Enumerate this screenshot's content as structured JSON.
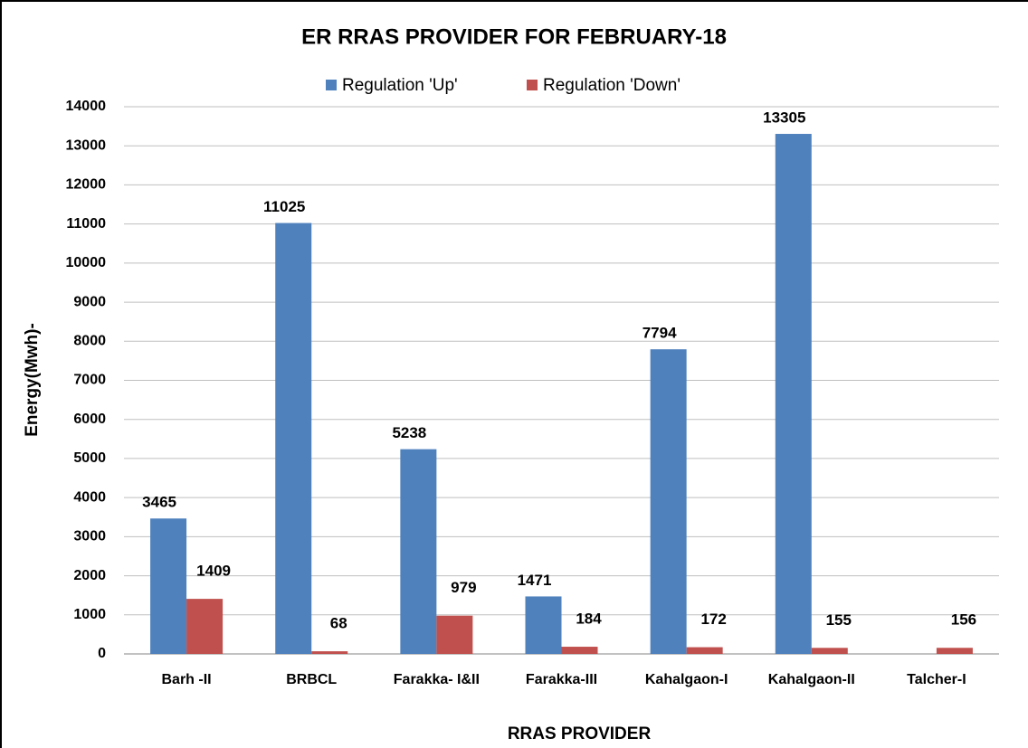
{
  "chart_data": {
    "type": "bar",
    "title": "ER RRAS PROVIDER FOR FEBRUARY-18",
    "x_label": "RRAS PROVIDER",
    "y_label": "Energy(Mwh)-",
    "categories": [
      "Barh -II",
      "BRBCL",
      "Farakka- I&II",
      "Farakka-III",
      "Kahalgaon-I",
      "Kahalgaon-II",
      "Talcher-I"
    ],
    "series": [
      {
        "name": "Regulation 'Up'",
        "color": "#4f81bd",
        "label_color": "#000000",
        "values": [
          3465,
          11025,
          5238,
          1471,
          7794,
          13305,
          null
        ]
      },
      {
        "name": "Regulation 'Down'",
        "color": "#c0504d",
        "label_color": "#e46c0a",
        "values": [
          1409,
          68,
          979,
          184,
          172,
          155,
          156
        ]
      }
    ],
    "ylim": [
      0,
      14000
    ],
    "yticks": [
      0,
      1000,
      2000,
      3000,
      4000,
      5000,
      6000,
      7000,
      8000,
      9000,
      10000,
      11000,
      12000,
      13000,
      14000
    ],
    "grid": true,
    "legend": "top"
  }
}
